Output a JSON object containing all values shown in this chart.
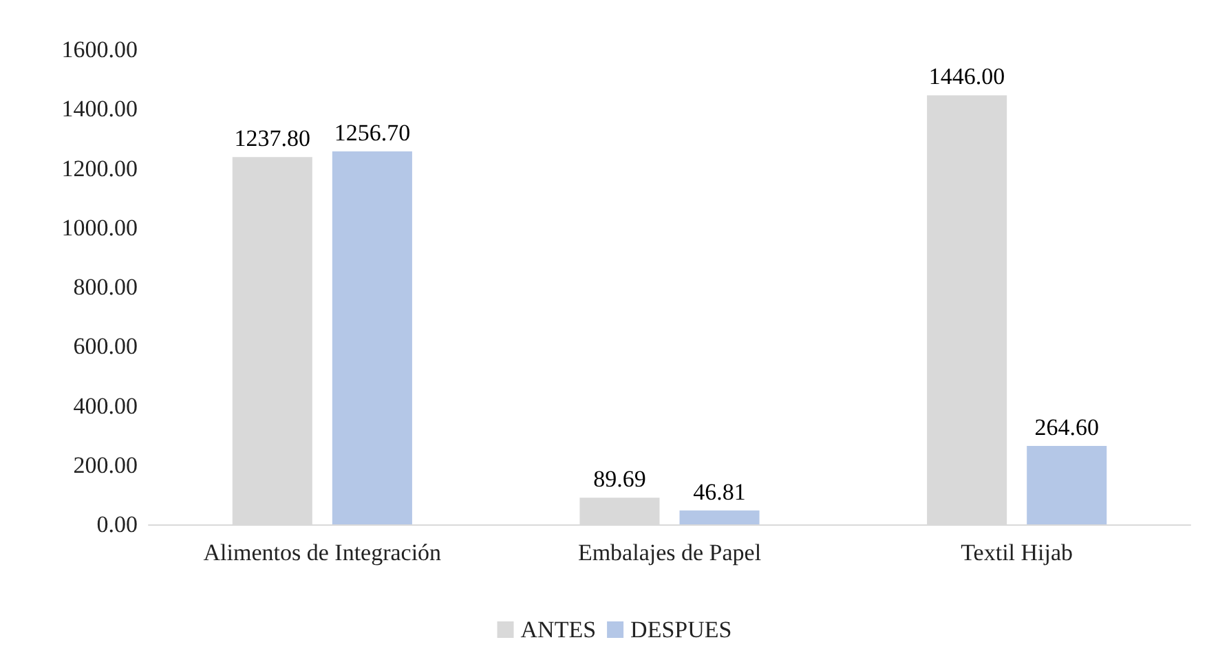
{
  "chart_data": {
    "type": "bar",
    "categories": [
      "Alimentos de Integración",
      "Embalajes de Papel",
      "Textil Hijab"
    ],
    "series": [
      {
        "name": "ANTES",
        "color": "#d9d9d9",
        "values": [
          1237.8,
          89.69,
          1446
        ],
        "value_labels": [
          "1237.80",
          "89.69",
          "1446.00"
        ]
      },
      {
        "name": "DESPUES",
        "color": "#b4c7e7",
        "values": [
          1256.7,
          46.81,
          264.6
        ],
        "value_labels": [
          "1256.70",
          "46.81",
          "264.60"
        ]
      }
    ],
    "ylim": [
      0,
      1600
    ],
    "yticks": [
      {
        "value": 0,
        "label": "0.00"
      },
      {
        "value": 200,
        "label": "200.00"
      },
      {
        "value": 400,
        "label": "400.00"
      },
      {
        "value": 600,
        "label": "600.00"
      },
      {
        "value": 800,
        "label": "800.00"
      },
      {
        "value": 1000,
        "label": "1000.00"
      },
      {
        "value": 1200,
        "label": "1200.00"
      },
      {
        "value": 1400,
        "label": "1400.00"
      },
      {
        "value": 1600,
        "label": "1600.00"
      }
    ],
    "grid": false,
    "legend": "bottom"
  }
}
